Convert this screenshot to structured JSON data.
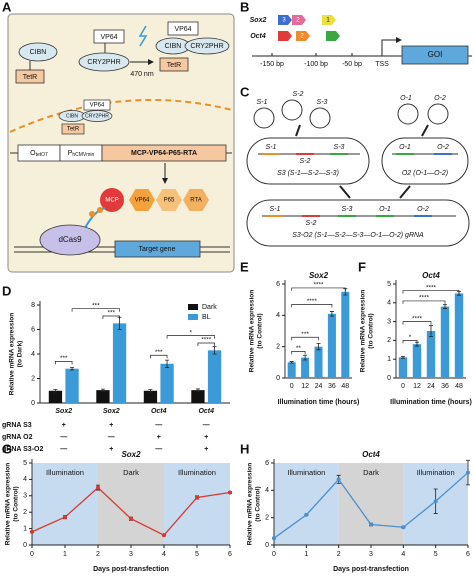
{
  "panel_labels": [
    "A",
    "B",
    "C",
    "D",
    "E",
    "F",
    "G",
    "H"
  ],
  "panel_a": {
    "free_cibn": "CIBN",
    "free_tetr": "TetR",
    "free_vp64": "VP64",
    "free_cry2phr": "CRY2PHR",
    "light": "470 nm",
    "bound_vp64": "VP64",
    "bound_cibn": "CIBN",
    "bound_cry2phr": "CRY2PHR",
    "bound_tetr": "TetR",
    "nuc_vp64": "VP64",
    "nuc_cibn": "CIBN",
    "nuc_cry2phr": "CRY2PHR",
    "nuc_tetr": "TetR",
    "operator": "O",
    "operator_sub": "tetO7",
    "promoter": "P",
    "promoter_sub": "hCMVmin",
    "cassette": "MCP-VP64-P65-RTA",
    "mcp": "MCP",
    "vp64": "VP64",
    "p65": "P65",
    "rta": "RTA",
    "dcas9": "dCas9",
    "target": "Target gene"
  },
  "panel_b": {
    "sox2": "Sox2",
    "oct4": "Oct4",
    "sox2_sites": [
      "3",
      "2",
      "1"
    ],
    "oct4_site": "2",
    "ticks": [
      "-150 bp",
      "-100 bp",
      "-50 bp"
    ],
    "tss": "TSS",
    "goi": "GOI"
  },
  "panel_c": {
    "s": [
      "S-1",
      "S-2",
      "S-3"
    ],
    "o": [
      "O-1",
      "O-2"
    ],
    "s3": "S3 (S-1—S-2—S-3)",
    "o2": "O2 (O-1—O-2)",
    "s3o2": "S3-O2 (S-1—S-2—S-3—O-1—O-2) gRNA"
  },
  "chart_data": [
    {
      "type": "bar",
      "ylabel": [
        "Relative mRNA expression",
        "(to Dark)"
      ],
      "categories": [
        "Sox2",
        "Sox2",
        "Oct4",
        "Oct4"
      ],
      "series": [
        {
          "name": "Dark",
          "color": "#111111",
          "values": [
            1,
            1.05,
            1,
            1.05
          ],
          "errors": [
            0.1,
            0.08,
            0.1,
            0.1
          ]
        },
        {
          "name": "BL",
          "color": "#3b9ad8",
          "values": [
            2.8,
            6.5,
            3.2,
            4.3
          ],
          "errors": [
            0.1,
            0.5,
            0.3,
            0.3
          ]
        }
      ],
      "ylim": [
        0,
        8
      ],
      "yticks": [
        0,
        2,
        4,
        6,
        8
      ],
      "legend": "upper right",
      "significance": [
        "***",
        "***",
        "***",
        "***",
        "*",
        "****"
      ],
      "grna_table": [
        {
          "label": "gRNA S3",
          "marks": [
            "+",
            "+",
            "—",
            "—"
          ]
        },
        {
          "label": "gRNA O2",
          "marks": [
            "—",
            "—",
            "+",
            "+"
          ]
        },
        {
          "label": "gRNA S3-O2",
          "marks": [
            "—",
            "+",
            "—",
            "+"
          ]
        }
      ]
    },
    {
      "type": "bar",
      "title": "Sox2",
      "ylabel": [
        "Relative mRNA expression",
        "(to Control)"
      ],
      "xlabel": "Illumination time (hours)",
      "categories": [
        "0",
        "12",
        "24",
        "36",
        "48"
      ],
      "values": [
        1,
        1.3,
        2,
        4.1,
        5.5
      ],
      "errors": [
        0.05,
        0.15,
        0.2,
        0.15,
        0.2
      ],
      "color": "#3b9ad8",
      "ylim": [
        0,
        6
      ],
      "yticks": [
        0,
        2,
        4,
        6
      ],
      "significance": [
        "**",
        "***",
        "****",
        "****"
      ]
    },
    {
      "type": "bar",
      "title": "Oct4",
      "ylabel": [
        "Relative mRNA expression",
        "(to Control)"
      ],
      "xlabel": "Illumination time (hours)",
      "categories": [
        "0",
        "12",
        "24",
        "36",
        "48"
      ],
      "values": [
        1.1,
        1.8,
        2.5,
        3.8,
        4.5
      ],
      "errors": [
        0.05,
        0.1,
        0.3,
        0.1,
        0.1
      ],
      "color": "#3b9ad8",
      "ylim": [
        0,
        5
      ],
      "yticks": [
        0,
        1,
        2,
        3,
        4,
        5
      ],
      "significance": [
        "*",
        "****",
        "****",
        "****"
      ]
    },
    {
      "type": "line",
      "title": "Sox2",
      "ylabel": [
        "Relative mRNA expression",
        "(to Control)"
      ],
      "xlabel": "Days post-transfection",
      "x": [
        0,
        1,
        2,
        3,
        4,
        5,
        6
      ],
      "values": [
        0.8,
        1.7,
        3.5,
        1.6,
        0.6,
        2.9,
        3.2
      ],
      "errors": [
        0.05,
        0.1,
        0.15,
        0.1,
        0.05,
        0.1,
        0.05
      ],
      "color": "#d63a2f",
      "xlim": [
        0,
        6
      ],
      "xticks": [
        0,
        1,
        2,
        3,
        4,
        5,
        6
      ],
      "ylim": [
        0,
        5
      ],
      "yticks": [
        0,
        1,
        2,
        3,
        4,
        5
      ],
      "regions": [
        {
          "label": "Illumination",
          "from": 0,
          "to": 2,
          "color": "#c6dbf0"
        },
        {
          "label": "Dark",
          "from": 2,
          "to": 4,
          "color": "#d4d4d4"
        },
        {
          "label": "Illumination",
          "from": 4,
          "to": 6,
          "color": "#c6dbf0"
        }
      ]
    },
    {
      "type": "line",
      "title": "Oct4",
      "ylabel": [
        "Relative mRNA expression",
        "(to Control)"
      ],
      "xlabel": "Days post-transfection",
      "x": [
        0,
        1,
        2,
        3,
        4,
        5,
        6
      ],
      "values": [
        0.5,
        2.2,
        4.8,
        1.5,
        1.3,
        3.2,
        5.3
      ],
      "errors": [
        0.05,
        0.05,
        0.3,
        0.1,
        0.05,
        0.9,
        0.9
      ],
      "color": "#4a90d0",
      "xlim": [
        0,
        6
      ],
      "xticks": [
        0,
        1,
        2,
        3,
        4,
        5,
        6
      ],
      "ylim": [
        0,
        6
      ],
      "yticks": [
        0,
        2,
        4,
        6
      ],
      "regions": [
        {
          "label": "Illumination",
          "from": 0,
          "to": 2,
          "color": "#c6dbf0"
        },
        {
          "label": "Dark",
          "from": 2,
          "to": 4,
          "color": "#d4d4d4"
        },
        {
          "label": "Illumination",
          "from": 4,
          "to": 6,
          "color": "#c6dbf0"
        }
      ]
    }
  ]
}
